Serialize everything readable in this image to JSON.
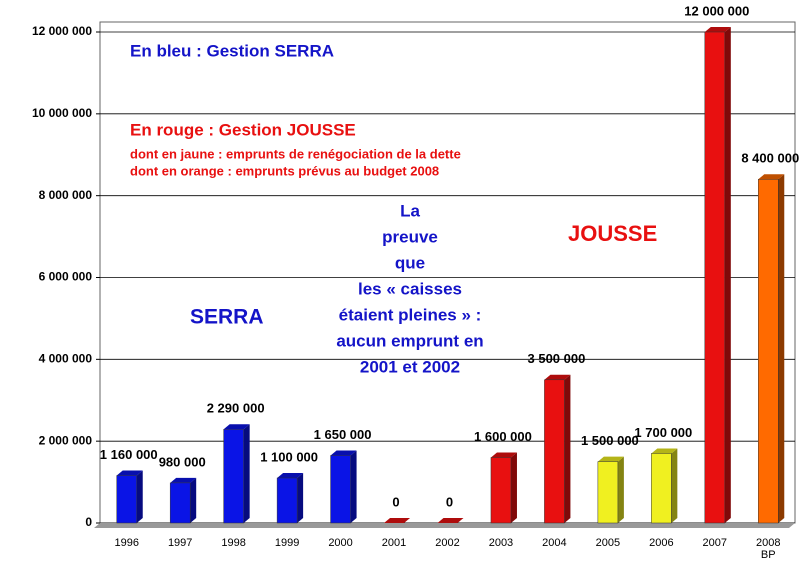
{
  "chart_data": {
    "type": "bar",
    "categories": [
      "1996",
      "1997",
      "1998",
      "1999",
      "2000",
      "2001",
      "2002",
      "2003",
      "2004",
      "2005",
      "2006",
      "2007",
      "2008 BP"
    ],
    "values": [
      1160000,
      980000,
      2290000,
      1100000,
      1650000,
      0,
      0,
      1600000,
      3500000,
      1500000,
      1700000,
      12000000,
      8400000
    ],
    "value_labels": [
      "1 160 000",
      "980 000",
      "2 290 000",
      "1 100 000",
      "1 650 000",
      "0",
      "0",
      "1 600 000",
      "3 500 000",
      "1 500 000",
      "1 700 000",
      "12 000 000",
      "8 400 000"
    ],
    "colors": [
      "#0a14e6",
      "#0a14e6",
      "#0a14e6",
      "#0a14e6",
      "#0a14e6",
      "#e81010",
      "#e81010",
      "#e81010",
      "#e81010",
      "#f0f020",
      "#f0f020",
      "#e81010",
      "#ff6a00"
    ],
    "ylim": [
      0,
      12000000
    ],
    "yticks": [
      0,
      {
        "value": 2000000,
        "label": "2 000 000"
      },
      {
        "value": 4000000,
        "label": "4 000 000"
      },
      {
        "value": 6000000,
        "label": "6 000 000"
      },
      {
        "value": 8000000,
        "label": "8 000 000"
      },
      {
        "value": 10000000,
        "label": "10 000 000"
      },
      {
        "value": 12000000,
        "label": "12 000 000"
      }
    ],
    "grid": true,
    "annotations": [
      {
        "text": "En bleu : Gestion SERRA",
        "color": "#1414c8"
      },
      {
        "text": "En rouge : Gestion JOUSSE",
        "color": "#e81010"
      },
      {
        "text": "dont en jaune : emprunts de renégociation de la dette",
        "color": "#e81010"
      },
      {
        "text": "dont en orange : emprunts prévus au budget 2008",
        "color": "#e81010"
      },
      {
        "text": "SERRA",
        "color": "#1414c8"
      },
      {
        "text": "JOUSSE",
        "color": "#e81010"
      }
    ],
    "note_lines": [
      "La",
      "preuve",
      "que",
      "les « caisses",
      "étaient pleines » :",
      "aucun emprunt en",
      "2001 et 2002"
    ],
    "note_color": "#1414c8"
  }
}
